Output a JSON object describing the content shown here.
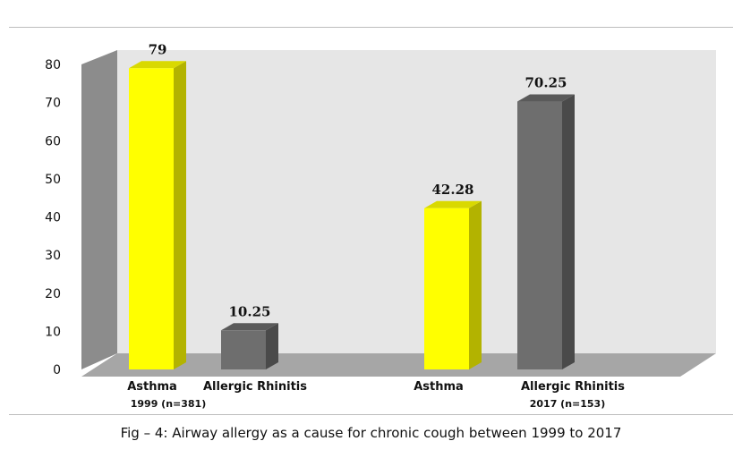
{
  "caption": "Fig – 4: Airway allergy as a cause for chronic cough between 1999 to 2017",
  "chart_data": {
    "type": "bar",
    "categories": [
      "Asthma",
      "Allergic Rhinitis",
      "Asthma",
      "Allergic Rhinitis"
    ],
    "groups": [
      "1999 (n=381)",
      "2017 (n=153)"
    ],
    "values": [
      79,
      10.25,
      42.28,
      70.25
    ],
    "data_labels": [
      "79",
      "10.25",
      "42.28",
      "70.25"
    ],
    "group_index": [
      0,
      0,
      1,
      1
    ],
    "bar_colors": [
      "#ffff00",
      "#6e6e6e",
      "#ffff00",
      "#6e6e6e"
    ],
    "bar_side_colors": [
      "#b3b300",
      "#4a4a4a",
      "#b3b300",
      "#4a4a4a"
    ],
    "bar_top_colors": [
      "#d9d900",
      "#5a5a5a",
      "#d9d900",
      "#5a5a5a"
    ],
    "ylim": [
      0,
      80
    ],
    "yticks": [
      "0",
      "10",
      "20",
      "30",
      "40",
      "50",
      "60",
      "70",
      "80"
    ],
    "title": "",
    "xlabel": "",
    "ylabel": "",
    "grid": false,
    "style": "3d",
    "wall_color": "#e6e6e6",
    "floor_color": "#a6a6a6",
    "side_wall_color": "#8c8c8c"
  }
}
